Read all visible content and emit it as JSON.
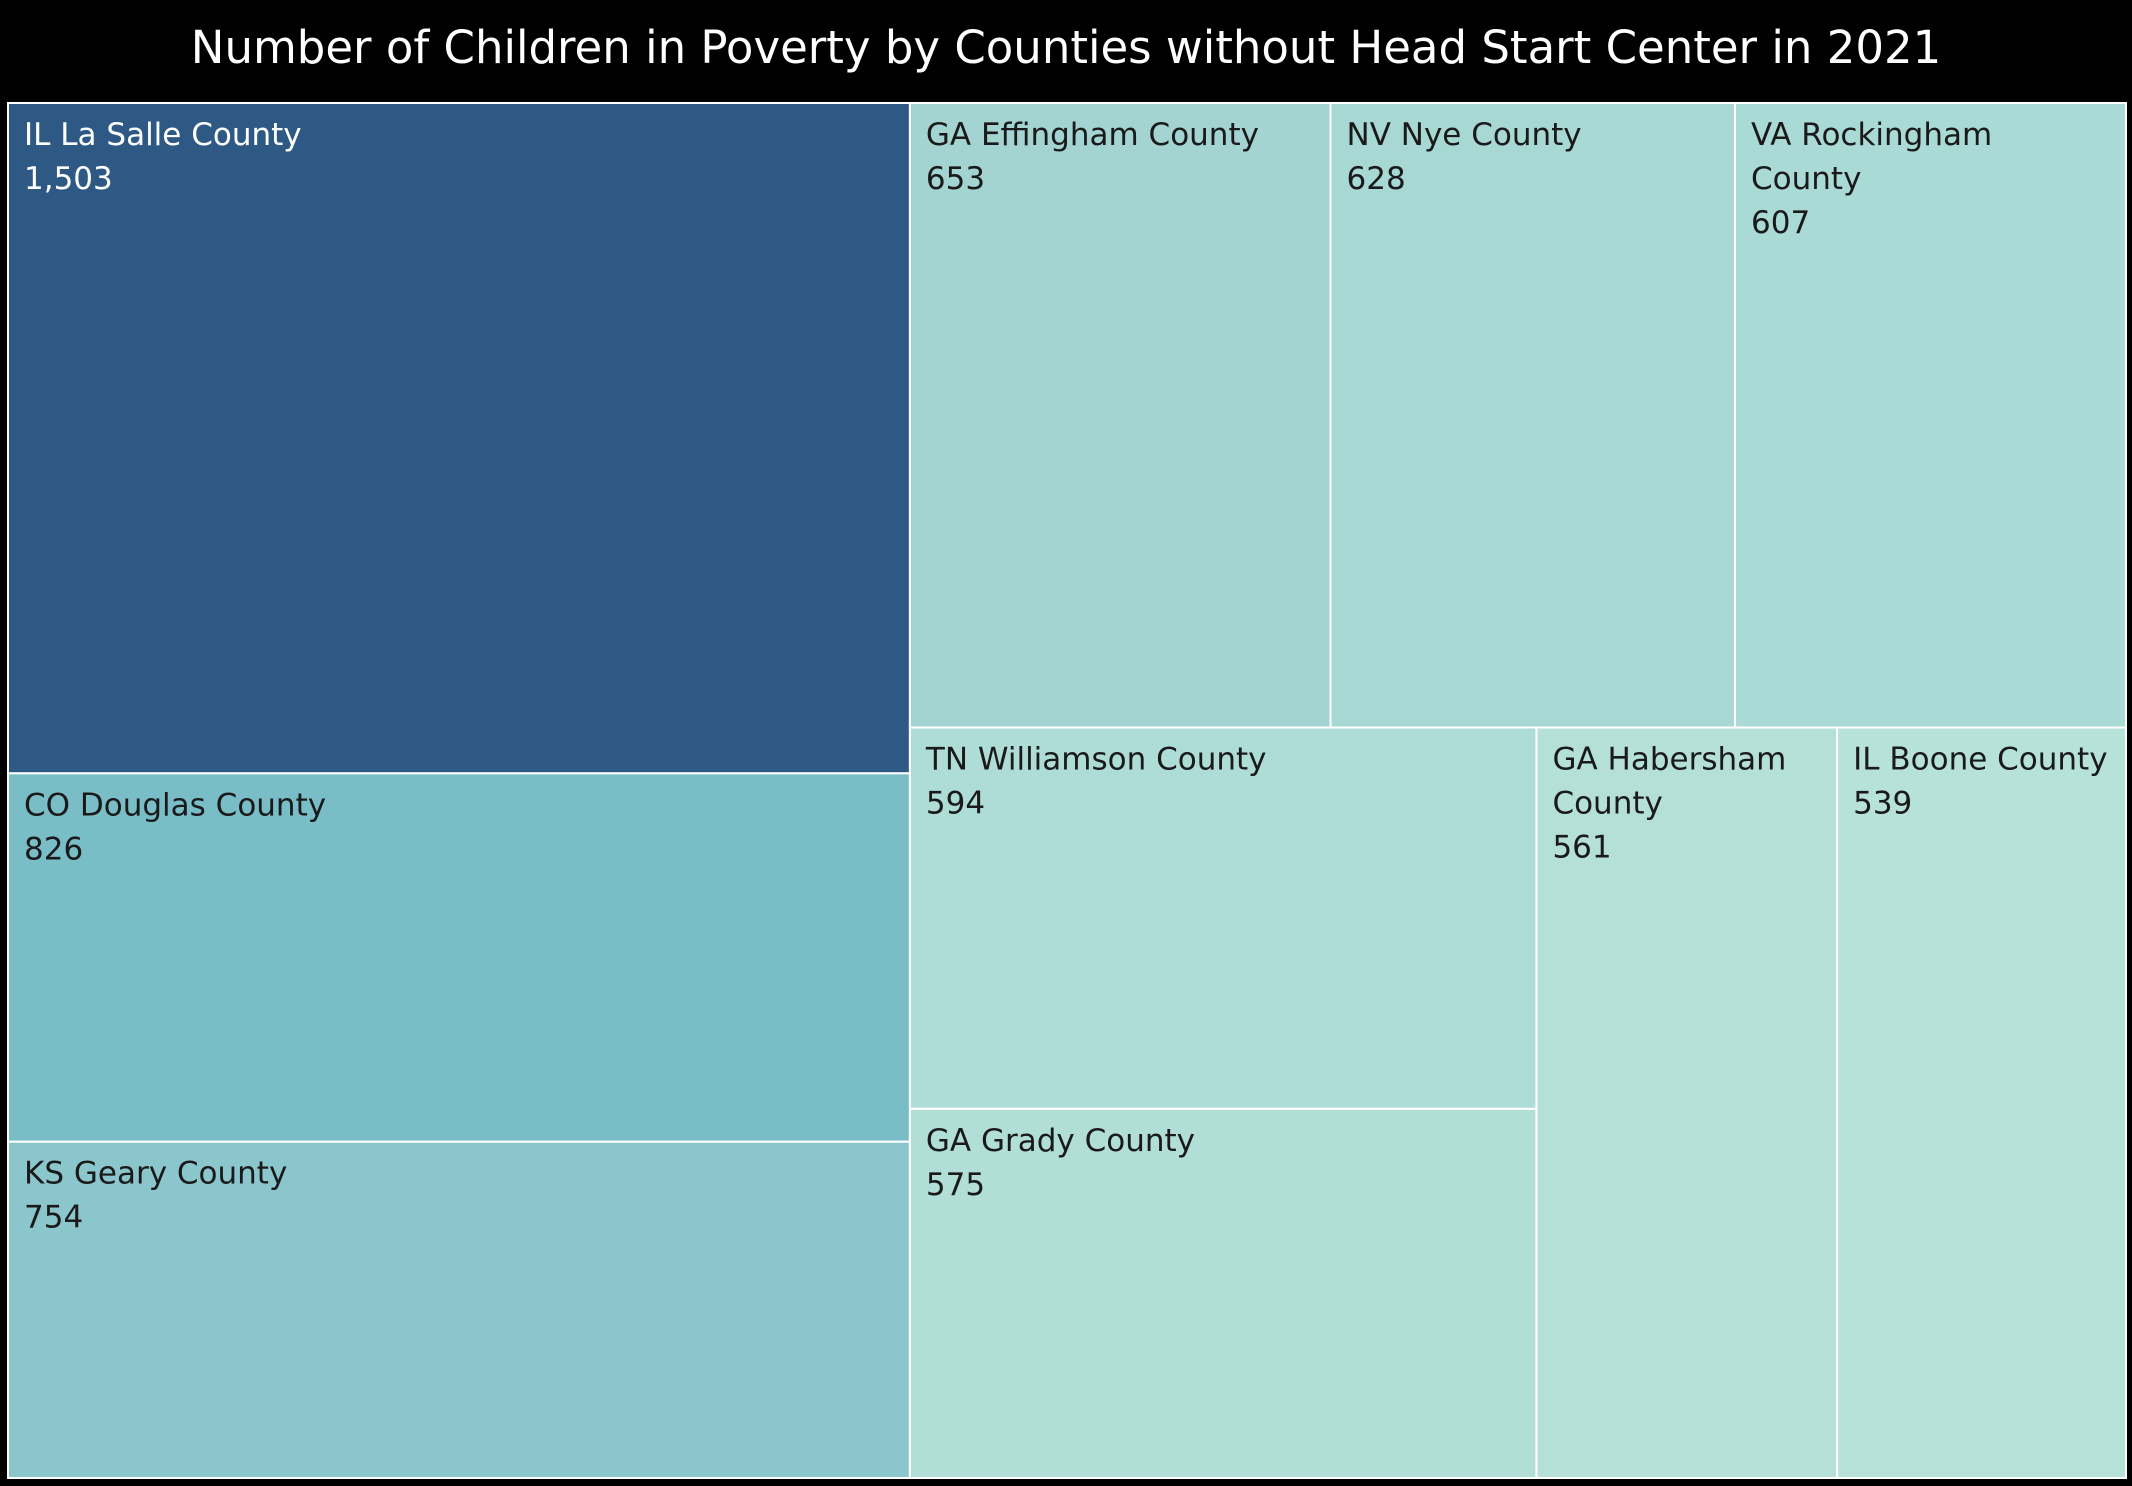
{
  "chart_data": {
    "type": "treemap",
    "title": "Number of Children in Poverty by Counties without Head Start Center in 2021",
    "items": [
      {
        "name": "IL La Salle County",
        "value": 1503,
        "value_label": "1,503",
        "color": "#2e5985"
      },
      {
        "name": "CO Douglas County",
        "value": 826,
        "value_label": "826",
        "color": "#79bdc7"
      },
      {
        "name": "KS Geary County",
        "value": 754,
        "value_label": "754",
        "color": "#8bc6cd"
      },
      {
        "name": "GA Effingham County",
        "value": 653,
        "value_label": "653",
        "color": "#a3d4d2"
      },
      {
        "name": "NV Nye County",
        "value": 628,
        "value_label": "628",
        "color": "#a7d8d4"
      },
      {
        "name": "VA Rockingham County",
        "value": 607,
        "value_label": "607",
        "color": "#aadad5"
      },
      {
        "name": "TN Williamson County",
        "value": 594,
        "value_label": "594",
        "color": "#aedcd7"
      },
      {
        "name": "GA Grady County",
        "value": 575,
        "value_label": "575",
        "color": "#b1ded7"
      },
      {
        "name": "GA Habersham County",
        "value": 561,
        "value_label": "561",
        "color": "#b4e0d8"
      },
      {
        "name": "IL Boone County",
        "value": 539,
        "value_label": "539",
        "color": "#b7e2da"
      }
    ]
  }
}
